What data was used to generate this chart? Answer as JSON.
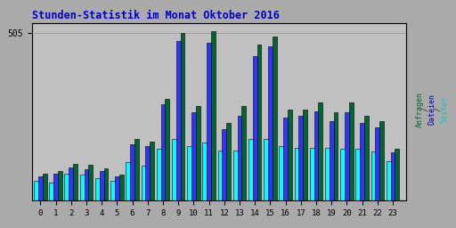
{
  "title": "Stunden-Statistik im Monat Oktober 2016",
  "ytick_label": "505",
  "hours": [
    0,
    1,
    2,
    3,
    4,
    5,
    6,
    7,
    8,
    9,
    10,
    11,
    12,
    13,
    14,
    15,
    16,
    17,
    18,
    19,
    20,
    21,
    22,
    23
  ],
  "cyan": [
    60,
    55,
    80,
    78,
    68,
    60,
    115,
    105,
    155,
    185,
    165,
    175,
    150,
    150,
    185,
    185,
    165,
    160,
    158,
    158,
    155,
    155,
    148,
    118
  ],
  "blue": [
    72,
    80,
    100,
    95,
    88,
    72,
    170,
    165,
    290,
    480,
    265,
    475,
    215,
    255,
    435,
    465,
    250,
    255,
    270,
    240,
    265,
    235,
    220,
    145
  ],
  "green": [
    80,
    88,
    110,
    108,
    98,
    78,
    185,
    178,
    305,
    505,
    285,
    510,
    235,
    285,
    470,
    495,
    275,
    275,
    295,
    265,
    295,
    255,
    240,
    155
  ],
  "color_cyan": "#00FFFF",
  "color_blue": "#3333FF",
  "color_green": "#006633",
  "bg_color": "#AAAAAA",
  "plot_bg": "#C0C0C0",
  "title_color": "#0000CC",
  "ylabel_color_seiten": "#00CCCC",
  "ylabel_color_dateien": "#0000BB",
  "ylabel_color_anfragen": "#006633",
  "bar_width": 0.28,
  "ylim": [
    0,
    535
  ],
  "border_color": "#000000",
  "grid_color": "#999999"
}
